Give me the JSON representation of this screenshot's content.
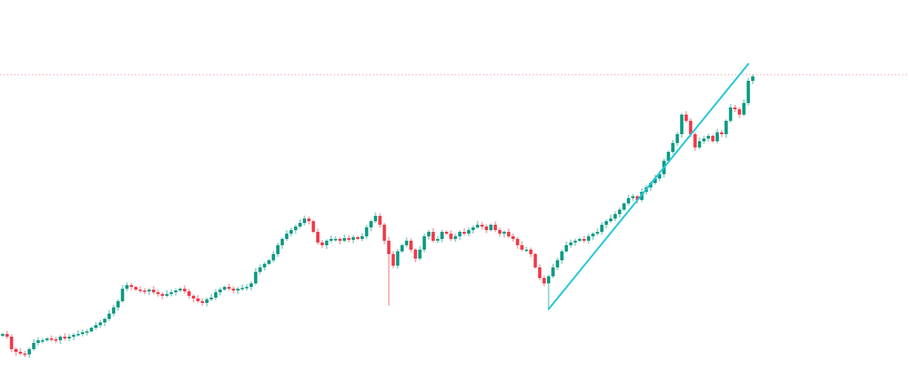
{
  "chart_data": {
    "type": "candlestick",
    "title": "",
    "xlabel": "",
    "ylabel": "",
    "grid": false,
    "colors": {
      "up": "#089981",
      "down": "#f23645",
      "trendline": "#26c6da",
      "price_line": "#f7a1a8",
      "background": "#ffffff"
    },
    "closes": [
      45,
      42,
      28,
      25,
      23,
      22,
      28,
      35,
      38,
      38,
      40,
      39,
      38,
      42,
      40,
      42,
      44,
      45,
      47,
      48,
      52,
      55,
      58,
      62,
      68,
      75,
      82,
      96,
      100,
      98,
      95,
      94,
      93,
      95,
      92,
      90,
      88,
      90,
      92,
      94,
      96,
      93,
      88,
      85,
      82,
      80,
      84,
      86,
      92,
      95,
      98,
      96,
      94,
      96,
      97,
      98,
      102,
      115,
      120,
      124,
      128,
      135,
      145,
      152,
      158,
      162,
      166,
      170,
      175,
      172,
      160,
      148,
      145,
      150,
      152,
      152,
      150,
      153,
      151,
      154,
      152,
      155,
      165,
      172,
      178,
      168,
      150,
      135,
      122,
      138,
      145,
      150,
      140,
      130,
      140,
      155,
      160,
      150,
      152,
      160,
      158,
      152,
      155,
      160,
      158,
      162,
      165,
      168,
      166,
      162,
      168,
      162,
      158,
      160,
      155,
      152,
      145,
      140,
      140,
      135,
      120,
      108,
      102,
      110,
      120,
      128,
      138,
      145,
      148,
      150,
      152,
      150,
      155,
      158,
      160,
      168,
      172,
      175,
      180,
      185,
      192,
      198,
      200,
      196,
      205,
      210,
      215,
      220,
      225,
      240,
      250,
      260,
      270,
      292,
      285,
      270,
      255,
      262,
      265,
      268,
      262,
      272,
      270,
      285,
      300,
      298,
      292,
      305,
      330,
      335
    ],
    "first_open": 43,
    "wick_extra": 3,
    "special_wicks": [
      {
        "index": 87,
        "low": 77
      },
      {
        "index": 123,
        "low": 73
      }
    ],
    "trendline": {
      "start": {
        "index": 123,
        "price": 73
      },
      "end": {
        "index": 168,
        "price": 349
      }
    },
    "price_line": 337,
    "ylim": [
      0,
      421
    ]
  }
}
